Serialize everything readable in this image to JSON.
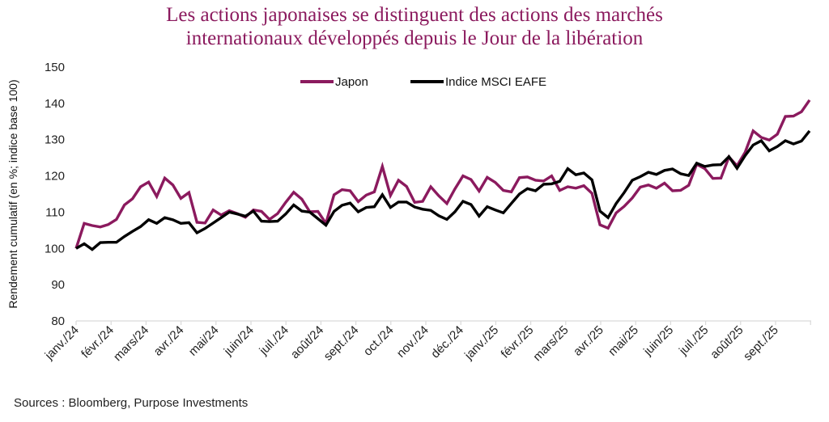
{
  "title_lines": [
    "Les actions japonaises se distinguent des actions des marchés",
    "internationaux développés depuis le Jour de la libération"
  ],
  "source": "Sources : Bloomberg, Purpose Investments",
  "chart_data": {
    "type": "line",
    "title": "Les actions japonaises se distinguent des actions des marchés internationaux développés depuis le Jour de la libération",
    "xlabel": "",
    "ylabel": "Rendement cumulatif (en %; indice base 100)",
    "ylim": [
      80,
      150
    ],
    "yticks": [
      80,
      90,
      100,
      110,
      120,
      130,
      140,
      150
    ],
    "x_tick_labels": [
      "janv./24",
      "févr./24",
      "mars/24",
      "avr./24",
      "mai/24",
      "juin/24",
      "juil./24",
      "août/24",
      "sept./24",
      "oct./24",
      "nov./24",
      "déc./24",
      "janv./25",
      "févr./25",
      "mars/25",
      "avr./25",
      "mai/25",
      "juin/25",
      "juil./25",
      "août/25",
      "sept./25"
    ],
    "grid": false,
    "legend_position": "top-center",
    "series": [
      {
        "name": "Japon",
        "color": "#8b1a5e",
        "values": [
          100.0,
          106.9,
          106.3,
          105.9,
          106.6,
          108.0,
          112.0,
          113.7,
          117.0,
          118.3,
          114.3,
          119.4,
          117.5,
          113.8,
          115.4,
          107.2,
          107.0,
          110.6,
          109.2,
          110.4,
          109.6,
          108.6,
          110.6,
          110.2,
          108.0,
          109.6,
          112.7,
          115.5,
          113.6,
          110.1,
          110.2,
          106.9,
          114.8,
          116.2,
          115.9,
          112.9,
          114.7,
          115.6,
          122.6,
          114.6,
          118.8,
          117.1,
          112.7,
          113.0,
          117.0,
          114.5,
          112.4,
          116.4,
          120.0,
          119.0,
          115.8,
          119.6,
          118.2,
          116.0,
          115.6,
          119.5,
          119.7,
          118.8,
          118.6,
          120.0,
          116.0,
          117.0,
          116.6,
          117.3,
          115.2,
          106.5,
          105.6,
          109.8,
          111.6,
          113.9,
          116.9,
          117.5,
          116.6,
          118.0,
          115.9,
          116.0,
          117.4,
          123.2,
          122.0,
          119.3,
          119.4,
          125.2,
          122.8,
          126.5,
          132.4,
          130.6,
          129.9,
          131.5,
          136.4,
          136.5,
          137.7,
          140.9
        ]
      },
      {
        "name": "Indice MSCI EAFE",
        "color": "#000000",
        "values": [
          100.0,
          101.3,
          99.7,
          101.6,
          101.7,
          101.7,
          103.3,
          104.7,
          106.0,
          107.9,
          106.9,
          108.5,
          107.9,
          106.9,
          107.1,
          104.3,
          105.5,
          107.0,
          108.5,
          110.0,
          109.5,
          108.9,
          110.3,
          107.5,
          107.4,
          107.5,
          109.5,
          112.0,
          110.3,
          110.0,
          108.2,
          106.4,
          110.2,
          111.9,
          112.5,
          110.1,
          111.3,
          111.5,
          114.8,
          111.3,
          112.8,
          112.8,
          111.4,
          110.8,
          110.5,
          109.0,
          108.0,
          110.1,
          113.0,
          112.1,
          108.9,
          111.5,
          110.6,
          109.8,
          112.4,
          115.0,
          116.5,
          115.9,
          117.7,
          117.8,
          118.5,
          122.0,
          120.3,
          120.8,
          118.9,
          110.3,
          108.5,
          112.4,
          115.4,
          118.8,
          119.8,
          121.0,
          120.4,
          121.5,
          121.9,
          120.6,
          120.1,
          123.5,
          122.6,
          123.0,
          123.1,
          125.3,
          122.1,
          125.6,
          128.5,
          129.7,
          126.9,
          128.1,
          129.7,
          128.8,
          129.6,
          132.4
        ]
      }
    ]
  }
}
